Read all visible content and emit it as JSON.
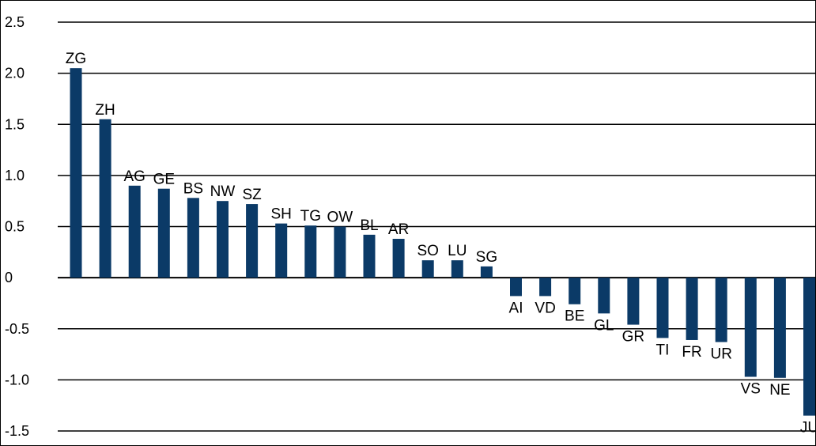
{
  "chart_data": {
    "type": "bar",
    "title": "",
    "xlabel": "",
    "ylabel": "",
    "ylim": [
      -1.5,
      2.5
    ],
    "yticks": [
      2.5,
      2.0,
      1.5,
      1.0,
      0.5,
      0,
      -0.5,
      -1.0,
      -1.5
    ],
    "ytick_labels": [
      "2.5",
      "2.0",
      "1.5",
      "1.0",
      "0.5",
      "0",
      "-0.5",
      "-1.0",
      "-1.5"
    ],
    "grid": true,
    "legend": "none",
    "bar_color": "#0b3a67",
    "categories": [
      "ZG",
      "ZH",
      "AG",
      "GE",
      "BS",
      "NW",
      "SZ",
      "SH",
      "TG",
      "OW",
      "BL",
      "AR",
      "SO",
      "LU",
      "SG",
      "AI",
      "VD",
      "BE",
      "GL",
      "GR",
      "TI",
      "FR",
      "UR",
      "VS",
      "NE",
      "JU"
    ],
    "values": [
      2.05,
      1.55,
      0.9,
      0.87,
      0.78,
      0.75,
      0.72,
      0.53,
      0.51,
      0.5,
      0.42,
      0.38,
      0.17,
      0.17,
      0.11,
      -0.18,
      -0.18,
      -0.26,
      -0.35,
      -0.46,
      -0.59,
      -0.61,
      -0.63,
      -0.97,
      -0.98,
      -1.35
    ]
  }
}
